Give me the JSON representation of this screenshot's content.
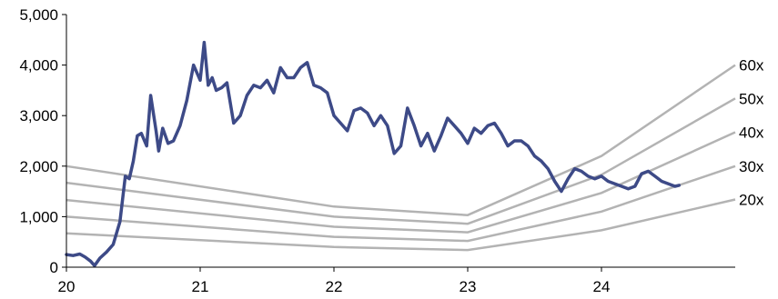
{
  "chart_data": {
    "type": "line",
    "title": "",
    "xlabel": "",
    "ylabel": "",
    "x_ticks": [
      "20",
      "21",
      "22",
      "23",
      "24"
    ],
    "y_ticks": [
      "0",
      "1,000",
      "2,000",
      "3,000",
      "4,000",
      "5,000"
    ],
    "xlim": [
      2020.0,
      2025.0
    ],
    "ylim": [
      0,
      5000
    ],
    "grid": false,
    "legend": "none",
    "colors": {
      "price": "#3d4a87",
      "band": "#b3b3b3",
      "axis": "#000000"
    },
    "price_series": {
      "name": "",
      "x": [
        2020.0,
        2020.05,
        2020.1,
        2020.14,
        2020.18,
        2020.21,
        2020.25,
        2020.3,
        2020.35,
        2020.4,
        2020.44,
        2020.47,
        2020.5,
        2020.53,
        2020.56,
        2020.6,
        2020.63,
        2020.67,
        2020.69,
        2020.72,
        2020.76,
        2020.8,
        2020.85,
        2020.9,
        2020.95,
        2021.0,
        2021.03,
        2021.06,
        2021.09,
        2021.12,
        2021.16,
        2021.2,
        2021.25,
        2021.3,
        2021.35,
        2021.4,
        2021.45,
        2021.5,
        2021.55,
        2021.6,
        2021.65,
        2021.7,
        2021.75,
        2021.8,
        2021.85,
        2021.9,
        2021.95,
        2022.0,
        2022.05,
        2022.1,
        2022.15,
        2022.2,
        2022.25,
        2022.3,
        2022.35,
        2022.4,
        2022.45,
        2022.5,
        2022.55,
        2022.6,
        2022.65,
        2022.7,
        2022.75,
        2022.8,
        2022.85,
        2022.9,
        2022.95,
        2023.0,
        2023.05,
        2023.1,
        2023.15,
        2023.2,
        2023.25,
        2023.3,
        2023.35,
        2023.4,
        2023.45,
        2023.5,
        2023.55,
        2023.6,
        2023.65,
        2023.7,
        2023.75,
        2023.8,
        2023.85,
        2023.9,
        2023.95,
        2024.0,
        2024.05,
        2024.1,
        2024.15,
        2024.2,
        2024.25,
        2024.3,
        2024.35,
        2024.4,
        2024.45,
        2024.5,
        2024.55,
        2024.58
      ],
      "y": [
        250,
        230,
        260,
        200,
        120,
        30,
        180,
        300,
        450,
        900,
        1800,
        1750,
        2100,
        2600,
        2650,
        2400,
        3400,
        2700,
        2300,
        2750,
        2450,
        2500,
        2800,
        3300,
        4000,
        3700,
        4450,
        3600,
        3750,
        3500,
        3550,
        3650,
        2850,
        3000,
        3400,
        3600,
        3550,
        3700,
        3450,
        3950,
        3750,
        3750,
        3950,
        4050,
        3600,
        3550,
        3450,
        3000,
        2850,
        2700,
        3100,
        3150,
        3050,
        2800,
        3000,
        2800,
        2250,
        2400,
        3150,
        2800,
        2400,
        2650,
        2300,
        2600,
        2950,
        2800,
        2650,
        2450,
        2750,
        2650,
        2800,
        2850,
        2650,
        2400,
        2500,
        2500,
        2400,
        2200,
        2100,
        1950,
        1700,
        1500,
        1750,
        1950,
        1900,
        1800,
        1750,
        1800,
        1700,
        1650,
        1600,
        1550,
        1600,
        1850,
        1900,
        1800,
        1700,
        1650,
        1600,
        1620
      ]
    },
    "bands": [
      {
        "label": "60x",
        "x": [
          2020,
          2022,
          2023,
          2024,
          2025
        ],
        "y": [
          2000,
          1200,
          1030,
          2200,
          4000
        ]
      },
      {
        "label": "50x",
        "x": [
          2020,
          2022,
          2023,
          2024,
          2025
        ],
        "y": [
          1670,
          1000,
          860,
          1830,
          3340
        ]
      },
      {
        "label": "40x",
        "x": [
          2020,
          2022,
          2023,
          2024,
          2025
        ],
        "y": [
          1330,
          800,
          690,
          1470,
          2670
        ]
      },
      {
        "label": "30x",
        "x": [
          2020,
          2022,
          2023,
          2024,
          2025
        ],
        "y": [
          1000,
          600,
          520,
          1100,
          2000
        ]
      },
      {
        "label": "20x",
        "x": [
          2020,
          2022,
          2023,
          2024,
          2025
        ],
        "y": [
          670,
          400,
          340,
          730,
          1340
        ]
      }
    ]
  }
}
